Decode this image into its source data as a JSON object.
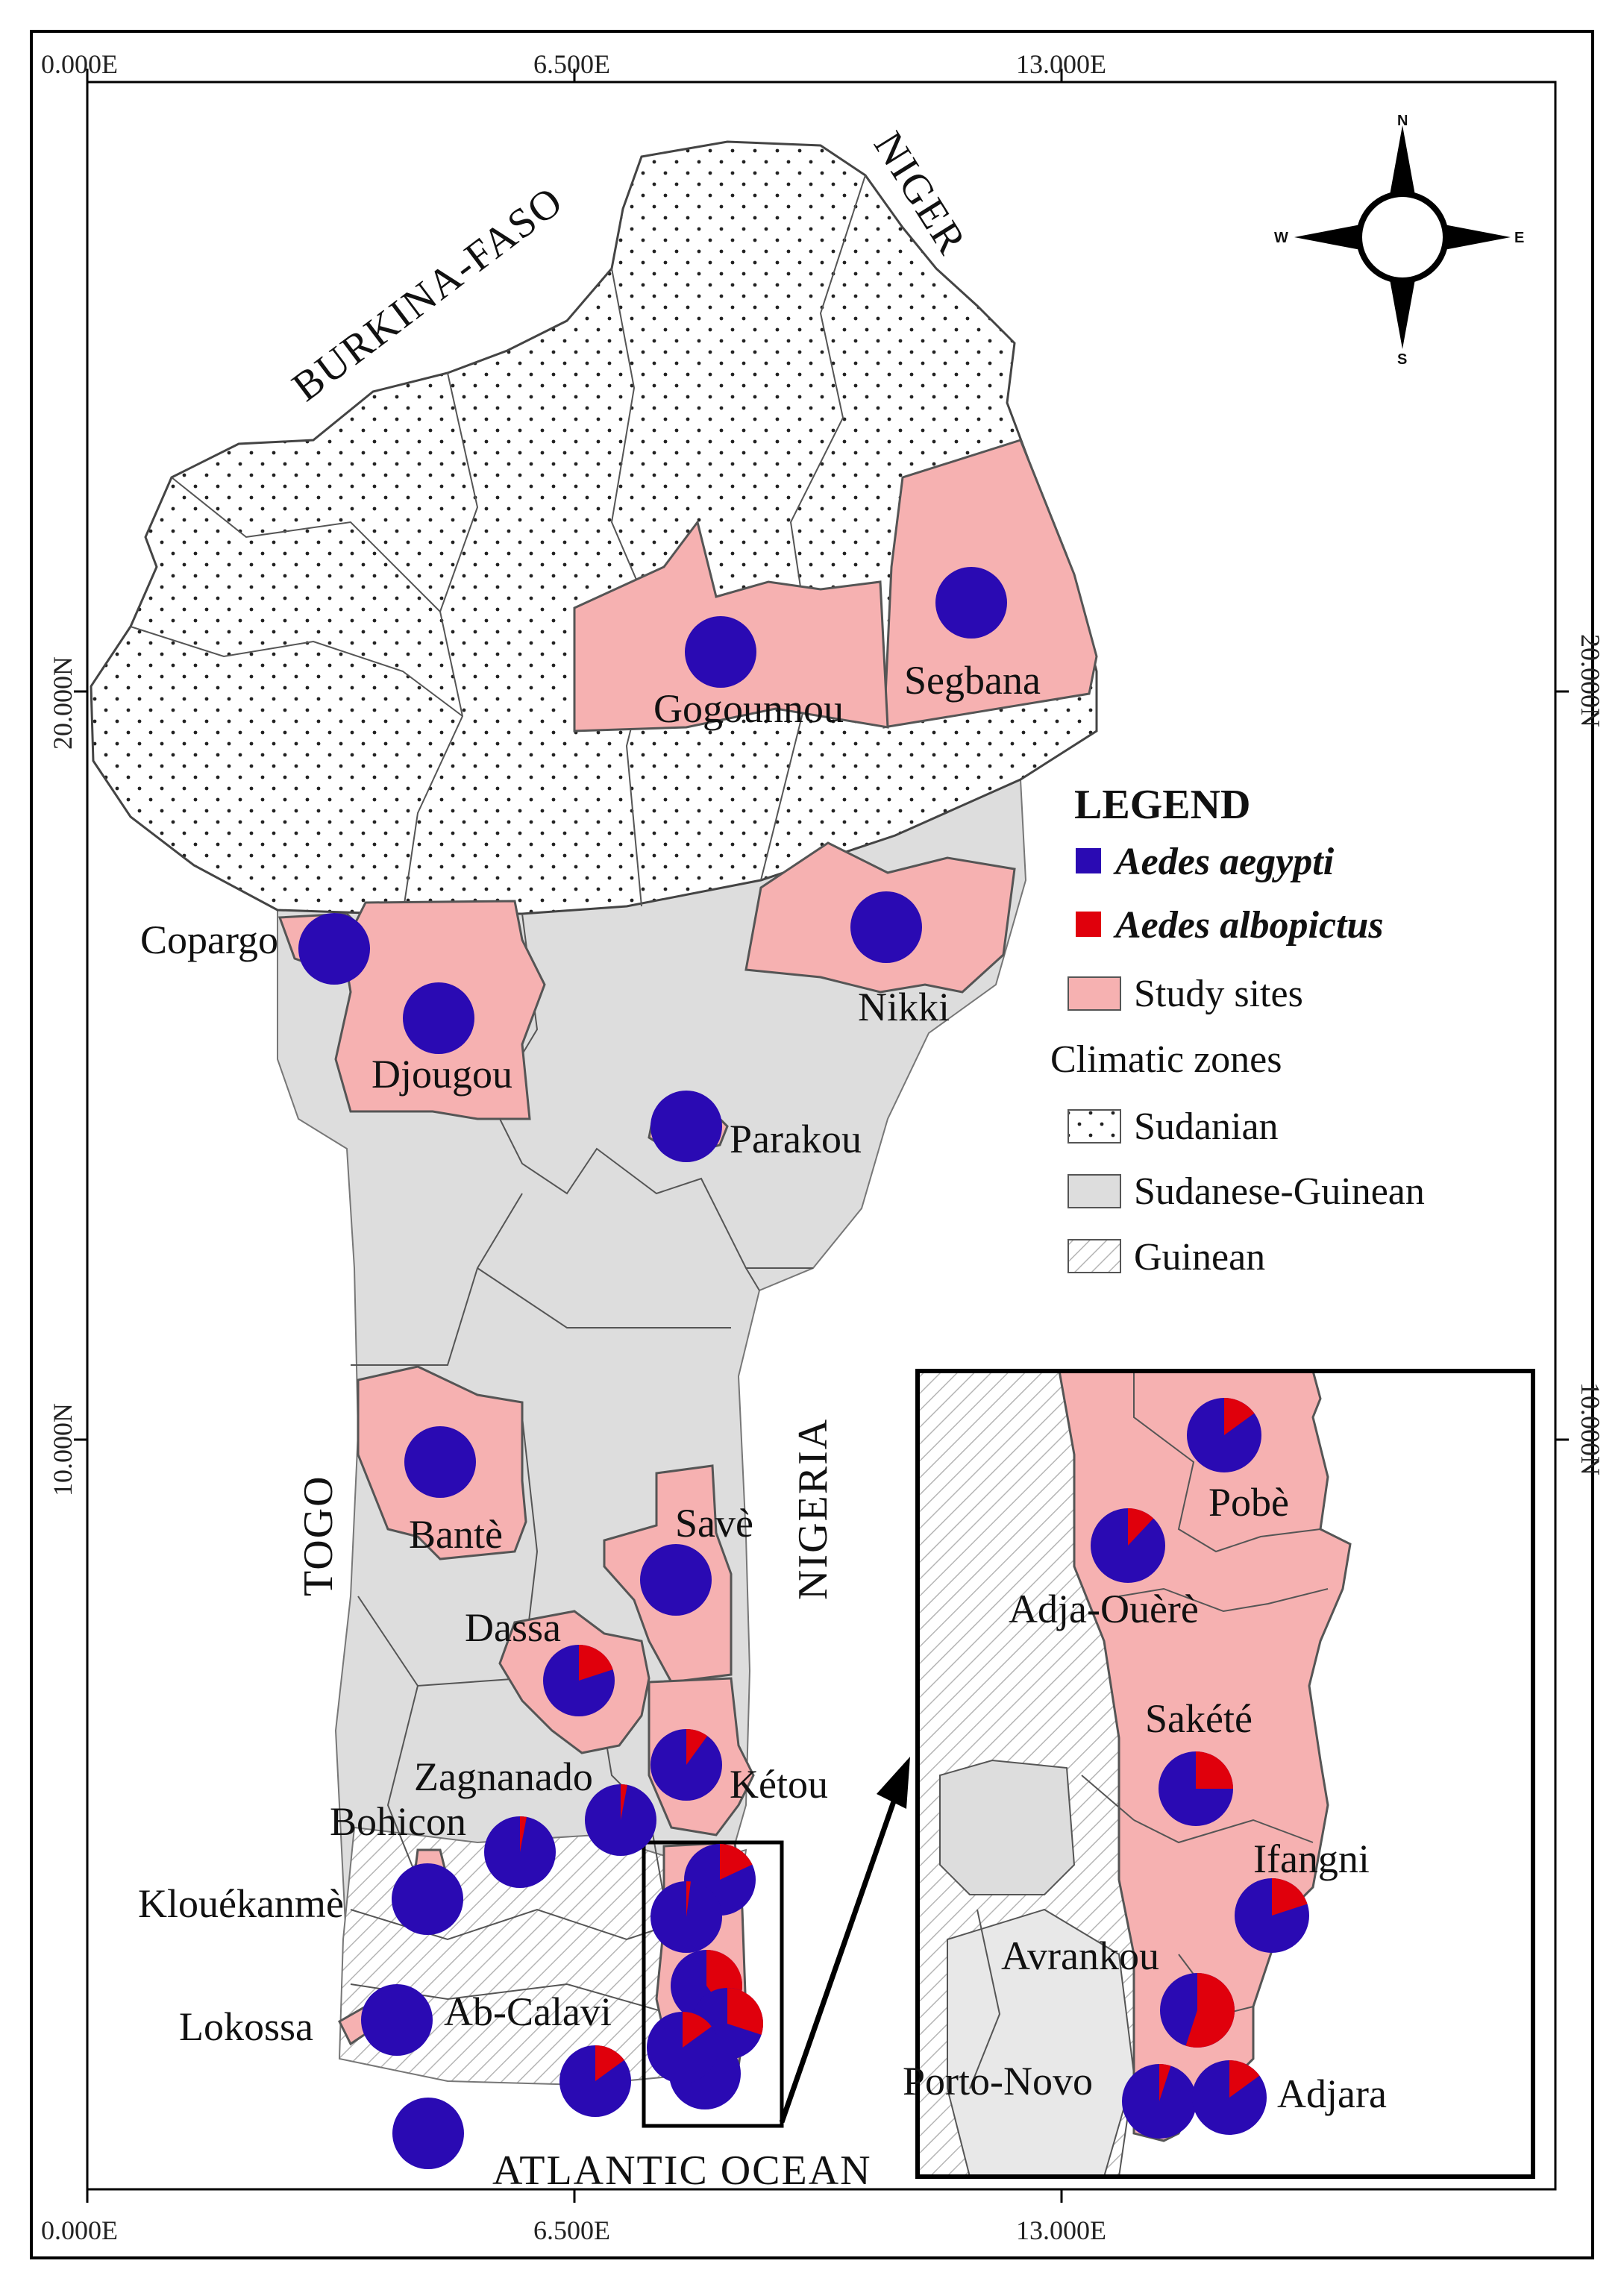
{
  "coordinates": {
    "top_left": "0.000E",
    "top_mid": "6.500E",
    "top_right": "13.000E",
    "bottom_left": "0.000E",
    "bottom_mid": "6.500E",
    "bottom_right": "13.000E",
    "lat_20_left": "20.000N",
    "lat_20_right": "20.000N",
    "lat_10_left": "10.000N",
    "lat_10_right": "10.000N"
  },
  "countries": {
    "burkina": "BURKINA-FASO",
    "niger": "NIGER",
    "togo": "TOGO",
    "nigeria": "NIGERIA",
    "ocean": "ATLANTIC OCEAN"
  },
  "compass": {
    "n": "N",
    "s": "S",
    "e": "E",
    "w": "W"
  },
  "legend": {
    "title": "LEGEND",
    "aegypti": "Aedes aegypti",
    "albopictus": "Aedes albopictus",
    "study_sites": "Study sites",
    "climatic_zones": "Climatic zones",
    "sudanian": "Sudanian",
    "sudanese_guinean": "Sudanese-Guinean",
    "guinean": "Guinean"
  },
  "colors": {
    "aegypti": "#2a0ab3",
    "albopictus": "#e0000c",
    "study_site": "#f6b1b1",
    "sudanese_guinean": "#dddddd"
  },
  "sites": [
    {
      "label": "Segbana",
      "albopictus_share": 0
    },
    {
      "label": "Gogounnou",
      "albopictus_share": 0
    },
    {
      "label": "Copargo",
      "albopictus_share": 0
    },
    {
      "label": "Djougou",
      "albopictus_share": 0
    },
    {
      "label": "Nikki",
      "albopictus_share": 0
    },
    {
      "label": "Parakou",
      "albopictus_share": 0
    },
    {
      "label": "Bantè",
      "albopictus_share": 0
    },
    {
      "label": "Savè",
      "albopictus_share": 0
    },
    {
      "label": "Dassa",
      "albopictus_share": 0.2
    },
    {
      "label": "Kétou",
      "albopictus_share": 0.1
    },
    {
      "label": "Zagnanado",
      "albopictus_share": 0.03
    },
    {
      "label": "Bohicon",
      "albopictus_share": 0.03
    },
    {
      "label": "Klouékanmè",
      "albopictus_share": 0
    },
    {
      "label": "Lokossa",
      "albopictus_share": 0
    },
    {
      "label": "Ab-Calavi",
      "albopictus_share": 0.15
    }
  ],
  "inset_sites": [
    {
      "label": "Pobè",
      "albopictus_share": 0.15
    },
    {
      "label": "Adja-Ouèrè",
      "albopictus_share": 0.12
    },
    {
      "label": "Sakété",
      "albopictus_share": 0.25
    },
    {
      "label": "Ifangni",
      "albopictus_share": 0.2
    },
    {
      "label": "Avrankou",
      "albopictus_share": 0.55
    },
    {
      "label": "Porto-Novo",
      "albopictus_share": 0.05
    },
    {
      "label": "Adjara",
      "albopictus_share": 0.15
    }
  ]
}
